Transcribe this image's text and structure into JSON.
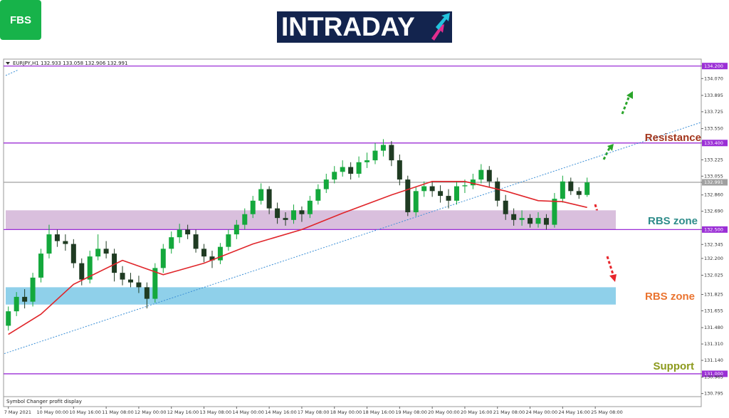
{
  "brand": "FBS",
  "logo": "INTRADAY",
  "chart_data": {
    "type": "candlestick",
    "title": "EURJPY,H1  132.933 133.058 132.906 132.991",
    "footer": "Symbol Changer profit display",
    "up_color": "#14a83c",
    "down_color": "#1f3b22",
    "open": [
      131.5,
      131.65,
      131.8,
      131.75,
      132.0,
      132.25,
      132.45,
      132.38,
      132.35,
      132.15,
      131.98,
      132.22,
      132.3,
      132.25,
      132.05,
      131.98,
      131.95,
      131.9,
      131.78,
      132.1,
      132.3,
      132.42,
      132.5,
      132.45,
      132.3,
      132.22,
      132.18,
      132.32,
      132.45,
      132.55,
      132.66,
      132.8,
      132.92,
      132.72,
      132.62,
      132.6,
      132.7,
      132.66,
      132.8,
      132.92,
      133.02,
      133.1,
      133.15,
      133.08,
      133.2,
      133.22,
      133.32,
      133.38,
      133.22,
      133.02,
      132.68,
      132.9,
      132.95,
      132.9,
      132.85,
      132.8,
      132.95,
      132.96,
      133.02,
      133.12,
      133.0,
      132.8,
      132.66,
      132.6,
      132.62,
      132.56,
      132.62,
      132.55,
      132.82,
      133.0,
      132.9,
      132.86
    ],
    "high": [
      131.7,
      131.85,
      131.88,
      132.05,
      132.3,
      132.55,
      132.5,
      132.45,
      132.4,
      132.2,
      132.28,
      132.45,
      132.38,
      132.3,
      132.12,
      132.05,
      132.02,
      131.95,
      132.15,
      132.35,
      132.48,
      132.56,
      132.55,
      132.5,
      132.35,
      132.28,
      132.36,
      132.5,
      132.6,
      132.72,
      132.85,
      132.98,
      132.95,
      132.78,
      132.68,
      132.76,
      132.74,
      132.85,
      132.97,
      133.08,
      133.16,
      133.22,
      133.2,
      133.26,
      133.3,
      133.4,
      133.44,
      133.42,
      133.28,
      133.06,
      132.95,
      133.0,
      133.0,
      132.96,
      132.92,
      133.0,
      133.02,
      133.08,
      133.18,
      133.16,
      133.04,
      132.86,
      132.72,
      132.7,
      132.66,
      132.68,
      132.66,
      132.88,
      133.06,
      133.04,
      132.94,
      133.04
    ],
    "low": [
      131.45,
      131.6,
      131.68,
      131.7,
      131.95,
      132.2,
      132.32,
      132.28,
      132.1,
      131.92,
      131.94,
      132.18,
      132.2,
      131.96,
      131.92,
      131.9,
      131.84,
      131.68,
      131.74,
      132.05,
      132.25,
      132.36,
      132.4,
      132.26,
      132.16,
      132.1,
      132.14,
      132.28,
      132.4,
      132.5,
      132.62,
      132.76,
      132.66,
      132.56,
      132.54,
      132.56,
      132.58,
      132.62,
      132.76,
      132.88,
      132.98,
      133.05,
      133.02,
      133.04,
      133.14,
      133.18,
      133.26,
      133.16,
      132.96,
      132.64,
      132.64,
      132.84,
      132.84,
      132.78,
      132.72,
      132.76,
      132.88,
      132.92,
      132.98,
      132.94,
      132.74,
      132.6,
      132.54,
      132.54,
      132.52,
      132.52,
      132.5,
      132.52,
      132.78,
      132.86,
      132.82,
      132.84
    ],
    "close": [
      131.65,
      131.8,
      131.75,
      132.0,
      132.25,
      132.45,
      132.38,
      132.35,
      132.15,
      131.98,
      132.22,
      132.3,
      132.25,
      132.05,
      131.98,
      131.95,
      131.9,
      131.78,
      132.1,
      132.3,
      132.42,
      132.5,
      132.45,
      132.3,
      132.22,
      132.18,
      132.32,
      132.45,
      132.55,
      132.66,
      132.8,
      132.92,
      132.72,
      132.62,
      132.6,
      132.7,
      132.66,
      132.8,
      132.92,
      133.02,
      133.1,
      133.15,
      133.08,
      133.2,
      133.22,
      133.32,
      133.38,
      133.22,
      133.02,
      132.68,
      132.9,
      132.95,
      132.9,
      132.85,
      132.8,
      132.95,
      132.96,
      133.02,
      133.12,
      133.0,
      132.8,
      132.66,
      132.6,
      132.62,
      132.56,
      132.62,
      132.55,
      132.82,
      133.0,
      132.9,
      132.86,
      132.99
    ],
    "ma": {
      "color": "#e0252a",
      "x": [
        0,
        4,
        8,
        14,
        19,
        24,
        30,
        36,
        41,
        47,
        52,
        56,
        61,
        65,
        68,
        71
      ],
      "values": [
        131.41,
        131.62,
        131.93,
        132.18,
        132.03,
        132.15,
        132.35,
        132.5,
        132.67,
        132.86,
        133.0,
        133.0,
        132.9,
        132.8,
        132.79,
        132.73
      ]
    },
    "trendline": {
      "color": "#3b8fd6",
      "x": [
        -0.5,
        85
      ],
      "values": [
        131.21,
        133.615
      ]
    },
    "levels": [
      {
        "value": 134.2,
        "color": "#9b2fd6"
      },
      {
        "value": 133.4,
        "color": "#9b2fd6"
      },
      {
        "value": 132.991,
        "color": "#a0a0a0"
      },
      {
        "value": 132.5,
        "color": "#9b2fd6"
      },
      {
        "value": 131.0,
        "color": "#9b2fd6"
      }
    ],
    "zones": [
      {
        "from": 132.5,
        "to": 132.7,
        "color": "#d9bfdd"
      },
      {
        "from": 131.72,
        "to": 131.9,
        "color": "#8fd0ea"
      }
    ],
    "annotations": [
      {
        "text": "Resistance",
        "color": "#a3361d"
      },
      {
        "text": "RBS zone",
        "color": "#2e8c8a"
      },
      {
        "text": "RBS zone",
        "color": "#ea7430"
      },
      {
        "text": "Support",
        "color": "#8c9a1c"
      }
    ],
    "xlim": [
      -0.5,
      85
    ],
    "xticks": [
      {
        "value": 0,
        "label": "7 May 2021"
      },
      {
        "value": 4,
        "label": "10 May 00:00"
      },
      {
        "value": 8,
        "label": "10 May 16:00"
      },
      {
        "value": 12,
        "label": "11 May 08:00"
      },
      {
        "value": 16,
        "label": "12 May 00:00"
      },
      {
        "value": 20,
        "label": "12 May 16:00"
      },
      {
        "value": 24,
        "label": "13 May 08:00"
      },
      {
        "value": 28,
        "label": "14 May 00:00"
      },
      {
        "value": 32,
        "label": "14 May 16:00"
      },
      {
        "value": 36,
        "label": "17 May 08:00"
      },
      {
        "value": 40,
        "label": "18 May 00:00"
      },
      {
        "value": 44,
        "label": "18 May 16:00"
      },
      {
        "value": 48,
        "label": "19 May 08:00"
      },
      {
        "value": 52,
        "label": "20 May 00:00"
      },
      {
        "value": 56,
        "label": "20 May 16:00"
      },
      {
        "value": 60,
        "label": "21 May 08:00"
      },
      {
        "value": 64,
        "label": "24 May 00:00"
      },
      {
        "value": 68,
        "label": "24 May 16:00"
      },
      {
        "value": 72,
        "label": "25 May 08:00"
      }
    ],
    "ylim": [
      130.77,
      134.25
    ],
    "yticks": [
      {
        "value": 134.2,
        "label": "134.200"
      },
      {
        "value": 134.07,
        "label": "134.070"
      },
      133.895,
      133.725,
      {
        "value": 133.55,
        "label": "133.550"
      },
      {
        "value": 133.4,
        "label": "133.400"
      },
      133.225,
      133.055,
      132.991,
      {
        "value": 132.86,
        "label": "132.860"
      },
      {
        "value": 132.69,
        "label": "132.690"
      },
      {
        "value": 132.5,
        "label": "132.500"
      },
      132.345,
      {
        "value": 132.2,
        "label": "132.200"
      },
      132.025,
      131.825,
      131.655,
      {
        "value": 131.48,
        "label": "131.480"
      },
      {
        "value": 131.31,
        "label": "131.310"
      },
      {
        "value": 131.14,
        "label": "131.140"
      },
      {
        "value": 131.0,
        "label": "131.000"
      },
      130.965,
      130.795
    ]
  }
}
